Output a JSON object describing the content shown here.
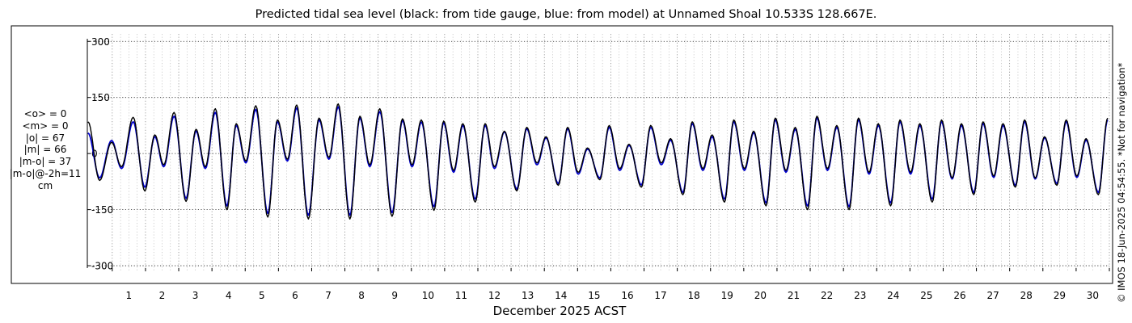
{
  "chart_data": {
    "type": "line",
    "title": "Predicted tidal sea level (black: from tide gauge, blue: from model) at Unnamed Shoal 10.533S 128.667E.",
    "xlabel": "December 2025 ACST",
    "ylabel": "",
    "x_ticks": [
      "1",
      "2",
      "3",
      "4",
      "5",
      "6",
      "7",
      "8",
      "9",
      "10",
      "11",
      "12",
      "13",
      "14",
      "15",
      "16",
      "17",
      "18",
      "19",
      "20",
      "21",
      "22",
      "23",
      "24",
      "25",
      "26",
      "27",
      "28",
      "29",
      "30"
    ],
    "y_ticks": [
      300,
      150,
      0,
      -150,
      -300
    ],
    "xlim": [
      0.25,
      31.0
    ],
    "ylim": [
      -315,
      320
    ],
    "x_unit": "day of December 2025",
    "grid": true,
    "series": [
      {
        "name": "tide gauge",
        "color": "#000000",
        "peaks": [
          [
            0.27,
            85
          ],
          [
            0.62,
            -72
          ],
          [
            0.98,
            30
          ],
          [
            1.28,
            -35
          ],
          [
            1.63,
            97
          ],
          [
            1.98,
            -100
          ],
          [
            2.28,
            50
          ],
          [
            2.55,
            -30
          ],
          [
            2.86,
            110
          ],
          [
            3.22,
            -128
          ],
          [
            3.52,
            65
          ],
          [
            3.8,
            -35
          ],
          [
            4.1,
            120
          ],
          [
            4.45,
            -150
          ],
          [
            4.73,
            80
          ],
          [
            5.02,
            -20
          ],
          [
            5.32,
            128
          ],
          [
            5.68,
            -170
          ],
          [
            5.97,
            90
          ],
          [
            6.27,
            -15
          ],
          [
            6.55,
            130
          ],
          [
            6.9,
            -175
          ],
          [
            7.22,
            95
          ],
          [
            7.52,
            -10
          ],
          [
            7.8,
            133
          ],
          [
            8.15,
            -175
          ],
          [
            8.45,
            100
          ],
          [
            8.75,
            -30
          ],
          [
            9.05,
            120
          ],
          [
            9.42,
            -168
          ],
          [
            9.73,
            93
          ],
          [
            10.02,
            -30
          ],
          [
            10.3,
            90
          ],
          [
            10.68,
            -152
          ],
          [
            10.97,
            87
          ],
          [
            11.27,
            -45
          ],
          [
            11.55,
            80
          ],
          [
            11.92,
            -130
          ],
          [
            12.22,
            80
          ],
          [
            12.5,
            -35
          ],
          [
            12.8,
            60
          ],
          [
            13.17,
            -100
          ],
          [
            13.47,
            70
          ],
          [
            13.78,
            -25
          ],
          [
            14.05,
            45
          ],
          [
            14.42,
            -85
          ],
          [
            14.7,
            70
          ],
          [
            15.02,
            -50
          ],
          [
            15.3,
            15
          ],
          [
            15.67,
            -70
          ],
          [
            15.95,
            75
          ],
          [
            16.27,
            -40
          ],
          [
            16.55,
            25
          ],
          [
            16.92,
            -90
          ],
          [
            17.2,
            75
          ],
          [
            17.52,
            -25
          ],
          [
            17.8,
            40
          ],
          [
            18.17,
            -110
          ],
          [
            18.45,
            85
          ],
          [
            18.77,
            -40
          ],
          [
            19.05,
            50
          ],
          [
            19.42,
            -130
          ],
          [
            19.7,
            90
          ],
          [
            20.02,
            -40
          ],
          [
            20.3,
            60
          ],
          [
            20.67,
            -140
          ],
          [
            20.95,
            95
          ],
          [
            21.27,
            -45
          ],
          [
            21.55,
            70
          ],
          [
            21.92,
            -150
          ],
          [
            22.2,
            100
          ],
          [
            22.52,
            -40
          ],
          [
            22.8,
            75
          ],
          [
            23.17,
            -150
          ],
          [
            23.45,
            95
          ],
          [
            23.77,
            -50
          ],
          [
            24.05,
            80
          ],
          [
            24.42,
            -140
          ],
          [
            24.7,
            90
          ],
          [
            25.02,
            -50
          ],
          [
            25.3,
            80
          ],
          [
            25.67,
            -130
          ],
          [
            25.95,
            90
          ],
          [
            26.27,
            -65
          ],
          [
            26.55,
            80
          ],
          [
            26.92,
            -110
          ],
          [
            27.2,
            85
          ],
          [
            27.52,
            -60
          ],
          [
            27.8,
            80
          ],
          [
            28.17,
            -90
          ],
          [
            28.45,
            90
          ],
          [
            28.77,
            -65
          ],
          [
            29.05,
            45
          ],
          [
            29.42,
            -85
          ],
          [
            29.7,
            90
          ],
          [
            30.02,
            -60
          ],
          [
            30.3,
            40
          ],
          [
            30.67,
            -110
          ],
          [
            30.95,
            95
          ]
        ]
      },
      {
        "name": "model",
        "color": "#0000cc",
        "peaks": [
          [
            0.27,
            55
          ],
          [
            0.62,
            -65
          ],
          [
            0.98,
            35
          ],
          [
            1.28,
            -40
          ],
          [
            1.63,
            85
          ],
          [
            1.98,
            -90
          ],
          [
            2.28,
            45
          ],
          [
            2.55,
            -35
          ],
          [
            2.86,
            100
          ],
          [
            3.22,
            -120
          ],
          [
            3.52,
            60
          ],
          [
            3.8,
            -40
          ],
          [
            4.1,
            110
          ],
          [
            4.45,
            -140
          ],
          [
            4.73,
            75
          ],
          [
            5.02,
            -25
          ],
          [
            5.32,
            118
          ],
          [
            5.68,
            -160
          ],
          [
            5.97,
            85
          ],
          [
            6.27,
            -20
          ],
          [
            6.55,
            122
          ],
          [
            6.9,
            -165
          ],
          [
            7.22,
            90
          ],
          [
            7.52,
            -15
          ],
          [
            7.8,
            125
          ],
          [
            8.15,
            -165
          ],
          [
            8.45,
            95
          ],
          [
            8.75,
            -35
          ],
          [
            9.05,
            112
          ],
          [
            9.42,
            -158
          ],
          [
            9.73,
            88
          ],
          [
            10.02,
            -35
          ],
          [
            10.3,
            84
          ],
          [
            10.68,
            -142
          ],
          [
            10.97,
            82
          ],
          [
            11.27,
            -50
          ],
          [
            11.55,
            75
          ],
          [
            11.92,
            -122
          ],
          [
            12.22,
            75
          ],
          [
            12.5,
            -40
          ],
          [
            12.8,
            58
          ],
          [
            13.17,
            -95
          ],
          [
            13.47,
            66
          ],
          [
            13.78,
            -30
          ],
          [
            14.05,
            42
          ],
          [
            14.42,
            -80
          ],
          [
            14.7,
            66
          ],
          [
            15.02,
            -55
          ],
          [
            15.3,
            12
          ],
          [
            15.67,
            -65
          ],
          [
            15.95,
            70
          ],
          [
            16.27,
            -45
          ],
          [
            16.55,
            22
          ],
          [
            16.92,
            -84
          ],
          [
            17.2,
            70
          ],
          [
            17.52,
            -30
          ],
          [
            17.8,
            36
          ],
          [
            18.17,
            -104
          ],
          [
            18.45,
            80
          ],
          [
            18.77,
            -45
          ],
          [
            19.05,
            45
          ],
          [
            19.42,
            -122
          ],
          [
            19.7,
            85
          ],
          [
            20.02,
            -45
          ],
          [
            20.3,
            56
          ],
          [
            20.67,
            -132
          ],
          [
            20.95,
            90
          ],
          [
            21.27,
            -50
          ],
          [
            21.55,
            65
          ],
          [
            21.92,
            -140
          ],
          [
            22.2,
            95
          ],
          [
            22.52,
            -45
          ],
          [
            22.8,
            70
          ],
          [
            23.17,
            -142
          ],
          [
            23.45,
            90
          ],
          [
            23.77,
            -55
          ],
          [
            24.05,
            75
          ],
          [
            24.42,
            -132
          ],
          [
            24.7,
            85
          ],
          [
            25.02,
            -55
          ],
          [
            25.3,
            75
          ],
          [
            25.67,
            -122
          ],
          [
            25.95,
            85
          ],
          [
            26.27,
            -68
          ],
          [
            26.55,
            75
          ],
          [
            26.92,
            -104
          ],
          [
            27.2,
            80
          ],
          [
            27.52,
            -64
          ],
          [
            27.8,
            75
          ],
          [
            28.17,
            -85
          ],
          [
            28.45,
            85
          ],
          [
            28.77,
            -68
          ],
          [
            29.05,
            42
          ],
          [
            29.42,
            -80
          ],
          [
            29.7,
            85
          ],
          [
            30.02,
            -64
          ],
          [
            30.3,
            36
          ],
          [
            30.67,
            -104
          ],
          [
            30.95,
            90
          ]
        ]
      }
    ]
  },
  "stats": {
    "lines": [
      "<o> = 0",
      "<m> = 0",
      "|o| = 67",
      "|m| = 66",
      "|m-o| = 37",
      "|m-o|@-2h=11",
      "cm"
    ]
  },
  "stamp": "© IMOS 18-Jun-2025 04:54:55. *Not for navigation*"
}
